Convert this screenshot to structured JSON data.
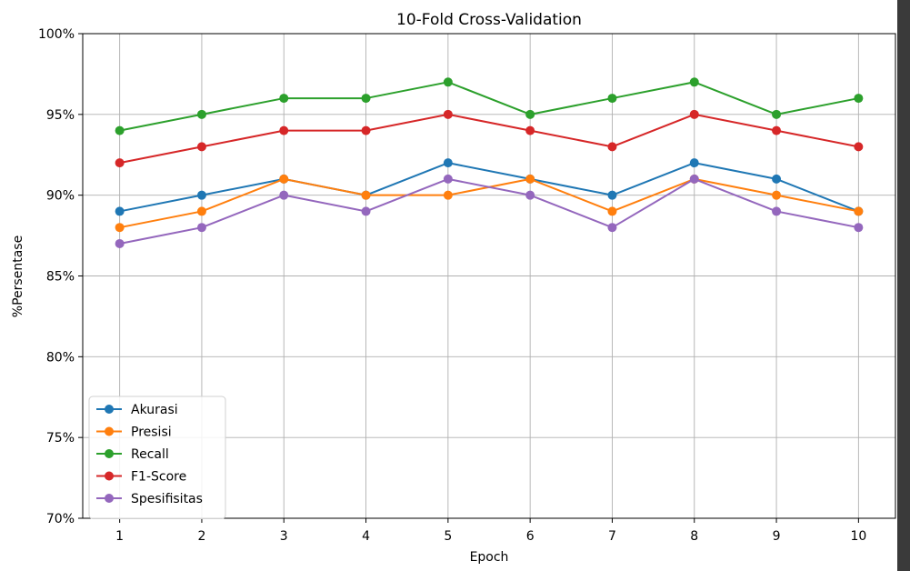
{
  "chart_data": {
    "type": "line",
    "title": "10-Fold Cross-Validation",
    "xlabel": "Epoch",
    "ylabel": "%Persentase",
    "x": [
      1,
      2,
      3,
      4,
      5,
      6,
      7,
      8,
      9,
      10
    ],
    "xticks": [
      "1",
      "2",
      "3",
      "4",
      "5",
      "6",
      "7",
      "8",
      "9",
      "10"
    ],
    "ylim": [
      70,
      100
    ],
    "yticks": [
      70,
      75,
      80,
      85,
      90,
      95,
      100
    ],
    "ytick_labels": [
      "70%",
      "75%",
      "80%",
      "85%",
      "90%",
      "95%",
      "100%"
    ],
    "grid": true,
    "legend_position": "lower-left",
    "series": [
      {
        "name": "Akurasi",
        "color": "#1f77b4",
        "values": [
          89,
          90,
          91,
          90,
          92,
          91,
          90,
          92,
          91,
          89
        ]
      },
      {
        "name": "Presisi",
        "color": "#ff7f0e",
        "values": [
          88,
          89,
          91,
          90,
          90,
          91,
          89,
          91,
          90,
          89
        ]
      },
      {
        "name": "Recall",
        "color": "#2ca02c",
        "values": [
          94,
          95,
          96,
          96,
          97,
          95,
          96,
          97,
          95,
          96
        ]
      },
      {
        "name": "F1-Score",
        "color": "#d62728",
        "values": [
          92,
          93,
          94,
          94,
          95,
          94,
          93,
          95,
          94,
          93
        ]
      },
      {
        "name": "Spesifisitas",
        "color": "#9467bd",
        "values": [
          87,
          88,
          90,
          89,
          91,
          90,
          88,
          91,
          89,
          88
        ]
      }
    ]
  }
}
